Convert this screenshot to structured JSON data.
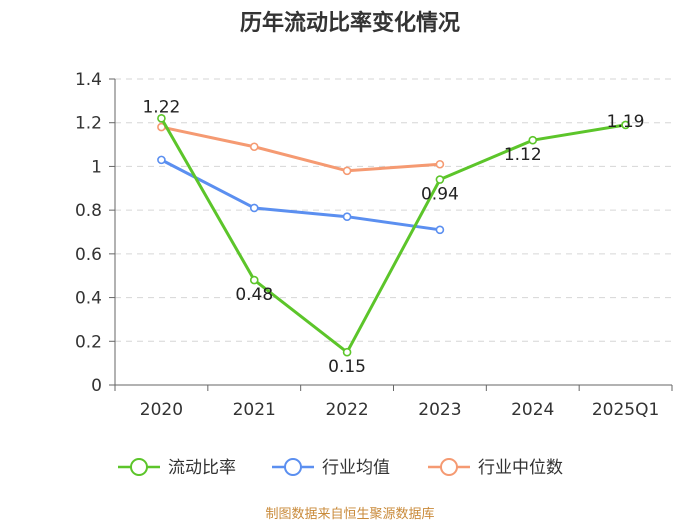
{
  "chart_data": {
    "type": "line",
    "title": "历年流动比率变化情况",
    "categories": [
      "2020",
      "2021",
      "2022",
      "2023",
      "2024",
      "2025Q1"
    ],
    "ylim": [
      0,
      1.4
    ],
    "yticks": [
      "0",
      "0.2",
      "0.4",
      "0.6",
      "0.8",
      "1",
      "1.2",
      "1.4"
    ],
    "grid": true,
    "legend_position": "bottom",
    "series": [
      {
        "name": "流动比率",
        "color": "#5cc52a",
        "values": [
          1.22,
          0.48,
          0.15,
          0.94,
          1.12,
          1.19
        ],
        "labels": [
          "1.22",
          "0.48",
          "0.15",
          "0.94",
          "1.12",
          "1.19"
        ]
      },
      {
        "name": "行业均值",
        "color": "#5b8ff0",
        "values": [
          1.03,
          0.81,
          0.77,
          0.71,
          null,
          null
        ]
      },
      {
        "name": "行业中位数",
        "color": "#f59a72",
        "values": [
          1.18,
          1.09,
          0.98,
          1.01,
          null,
          null
        ]
      }
    ]
  },
  "source": "制图数据来自恒生聚源数据库"
}
